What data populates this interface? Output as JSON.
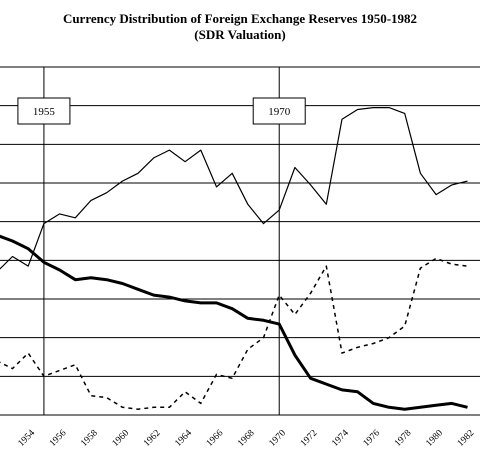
{
  "chart_data": {
    "type": "line",
    "title": "Currency Distribution of Foreign Exchange Reserves 1950-1982",
    "subtitle": "(SDR Valuation)",
    "x_ticks": [
      "1954",
      "1956",
      "1958",
      "1960",
      "1962",
      "1964",
      "1966",
      "1968",
      "1970",
      "1972",
      "1974",
      "1976",
      "1978",
      "1980",
      "1982"
    ],
    "xlim": [
      1952.2,
      1982.8
    ],
    "ylim": [
      0,
      9
    ],
    "grid": "horizontal",
    "annotations": [
      {
        "label": "1955",
        "x": 1955
      },
      {
        "label": "1970",
        "x": 1970
      }
    ],
    "series": [
      {
        "style": "thin",
        "x": [
          1952,
          1953,
          1954,
          1955,
          1956,
          1957,
          1958,
          1959,
          1960,
          1961,
          1962,
          1963,
          1964,
          1965,
          1966,
          1967,
          1968,
          1969,
          1970,
          1971,
          1972,
          1973,
          1974,
          1975,
          1976,
          1977,
          1978,
          1979,
          1980,
          1981,
          1982
        ],
        "values": [
          3.7,
          4.1,
          3.85,
          4.95,
          5.2,
          5.1,
          5.55,
          5.75,
          6.05,
          6.25,
          6.65,
          6.85,
          6.55,
          6.85,
          5.9,
          6.25,
          5.45,
          4.95,
          5.3,
          6.4,
          5.95,
          5.45,
          7.65,
          7.9,
          7.95,
          7.95,
          7.8,
          6.25,
          5.7,
          5.95,
          6.05
        ]
      },
      {
        "style": "thick",
        "x": [
          1952,
          1953,
          1954,
          1955,
          1956,
          1957,
          1958,
          1959,
          1960,
          1961,
          1962,
          1963,
          1964,
          1965,
          1966,
          1967,
          1968,
          1969,
          1970,
          1971,
          1972,
          1973,
          1974,
          1975,
          1976,
          1977,
          1978,
          1979,
          1980,
          1981,
          1982
        ],
        "values": [
          4.65,
          4.5,
          4.3,
          3.95,
          3.75,
          3.5,
          3.55,
          3.5,
          3.4,
          3.25,
          3.1,
          3.05,
          2.95,
          2.9,
          2.9,
          2.75,
          2.5,
          2.45,
          2.35,
          1.55,
          0.95,
          0.8,
          0.65,
          0.6,
          0.3,
          0.2,
          0.15,
          0.2,
          0.25,
          0.3,
          0.2
        ]
      },
      {
        "style": "dashed",
        "x": [
          1952,
          1953,
          1954,
          1955,
          1956,
          1957,
          1958,
          1959,
          1960,
          1961,
          1962,
          1963,
          1964,
          1965,
          1966,
          1967,
          1968,
          1969,
          1970,
          1971,
          1972,
          1973,
          1974,
          1975,
          1976,
          1977,
          1978,
          1979,
          1980,
          1981,
          1982
        ],
        "values": [
          1.4,
          1.2,
          1.6,
          1.0,
          1.15,
          1.3,
          0.5,
          0.45,
          0.2,
          0.15,
          0.2,
          0.2,
          0.6,
          0.3,
          1.05,
          0.95,
          1.7,
          2.0,
          3.1,
          2.6,
          3.15,
          3.85,
          1.6,
          1.75,
          1.85,
          2.0,
          2.3,
          3.8,
          4.05,
          3.9,
          3.85
        ]
      }
    ]
  }
}
